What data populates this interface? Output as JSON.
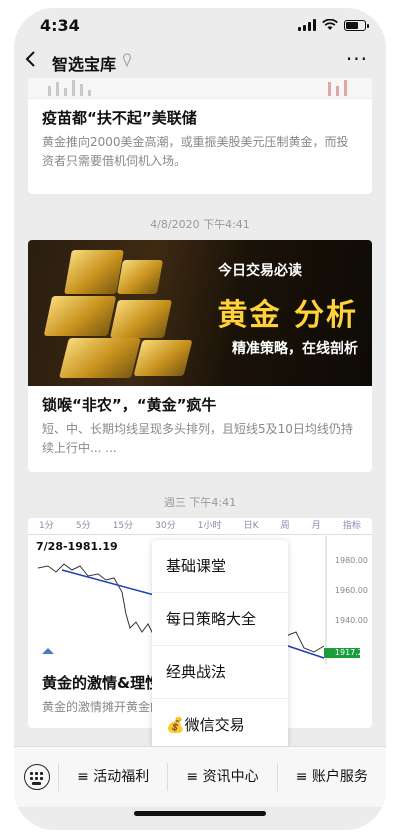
{
  "status_bar": {
    "time": "4:34"
  },
  "header": {
    "title": "智选宝库",
    "back_icon": "chevron-left-icon",
    "more_label": "···"
  },
  "feed": [
    {
      "title": "疫苗都“扶不起”美联储",
      "desc": "黄金推向2000美金高潮，或重振美股美元压制黄金，而投资者只需要借机伺机入场。"
    },
    {
      "timestamp": "4/8/2020 下午4:41"
    },
    {
      "banner": {
        "line1": "今日交易必读",
        "headline": "黄金 分析",
        "line2": "精准策略，在线剖析"
      },
      "title": "锁喉“非农”，“黄金”疯牛",
      "desc": "短、中、长期均线呈现多头排列，且短线5及10日均线仍持续上行中... ..."
    },
    {
      "timestamp": "週三 下午4:41"
    },
    {
      "chart": {
        "tabs": [
          "1分",
          "5分",
          "15分",
          "30分",
          "1小时",
          "日K",
          "周",
          "月",
          "指标"
        ],
        "price_label": "7/28-1981.19",
        "yticks": [
          "1980.00",
          "1960.00",
          "1940.00",
          "1917.22"
        ]
      },
      "title": "黄金的激情&理性",
      "desc": "黄金的激情摊开黄金的理性，助你分享金红利！"
    }
  ],
  "popup_menu": [
    "基础课堂",
    "每日策略大全",
    "经典战法",
    "💰微信交易"
  ],
  "bottom_menu": [
    "≡ 活动福利",
    "≡ 资讯中心",
    "≡ 账户服务"
  ],
  "colors": {
    "gold": "#ffd23a",
    "menu_bg": "#f7f7f7",
    "feed_bg": "#ececec"
  }
}
